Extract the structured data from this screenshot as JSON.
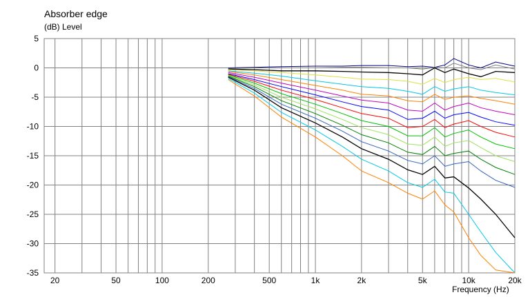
{
  "chart_data": {
    "type": "line",
    "title": "Absorber edge",
    "ylabel": "(dB)  Level",
    "xlabel": "Frequency  (Hz)",
    "x_scale": "log",
    "xlim": [
      17,
      20000
    ],
    "ylim": [
      -35,
      5
    ],
    "y_ticks": [
      5,
      0,
      -5,
      -10,
      -15,
      -20,
      -25,
      -30,
      -35
    ],
    "x_ticks": [
      {
        "value": 20,
        "label": "20"
      },
      {
        "value": 50,
        "label": "50"
      },
      {
        "value": 100,
        "label": "100"
      },
      {
        "value": 200,
        "label": "200"
      },
      {
        "value": 500,
        "label": "500"
      },
      {
        "value": 1000,
        "label": "1k"
      },
      {
        "value": 2000,
        "label": "2k"
      },
      {
        "value": 5000,
        "label": "5k"
      },
      {
        "value": 10000,
        "label": "10k"
      },
      {
        "value": 20000,
        "label": "20k"
      }
    ],
    "grid": true,
    "x": [
      270,
      400,
      600,
      1000,
      1500,
      2000,
      3000,
      4000,
      5000,
      6000,
      7000,
      8000,
      10000,
      12000,
      15000,
      20000
    ],
    "series": [
      {
        "color": "#000080",
        "values": [
          0.0,
          0.1,
          0.2,
          0.3,
          0.3,
          0.4,
          0.4,
          0.2,
          0.3,
          0.1,
          0.5,
          1.6,
          0.5,
          0.0,
          1.0,
          0.3
        ]
      },
      {
        "color": "#808080",
        "values": [
          -0.1,
          0.0,
          0.0,
          0.0,
          0.1,
          0.1,
          0.0,
          0.0,
          -0.2,
          0.1,
          0.0,
          0.8,
          0.0,
          -0.3,
          0.5,
          -0.2
        ]
      },
      {
        "color": "#000000",
        "values": [
          -0.2,
          -0.3,
          -0.5,
          -0.5,
          -0.6,
          -0.7,
          -0.8,
          -1.0,
          -1.2,
          0.0,
          -0.8,
          -0.2,
          -1.0,
          -1.5,
          -0.6,
          -0.8
        ]
      },
      {
        "color": "#e0e040",
        "values": [
          -0.3,
          -0.5,
          -0.8,
          -1.2,
          -1.6,
          -1.9,
          -2.0,
          -2.3,
          -2.8,
          -1.8,
          -2.5,
          -2.0,
          -1.6,
          -2.0,
          -1.8,
          -2.4
        ]
      },
      {
        "color": "#00c8e6",
        "values": [
          -0.5,
          -0.9,
          -1.4,
          -2.2,
          -2.8,
          -3.2,
          -3.5,
          -4.0,
          -4.5,
          -3.2,
          -4.0,
          -3.6,
          -3.2,
          -3.8,
          -4.2,
          -4.6
        ]
      },
      {
        "color": "#ff8000",
        "values": [
          -0.6,
          -1.2,
          -2.0,
          -3.0,
          -3.8,
          -4.5,
          -4.8,
          -5.6,
          -5.8,
          -4.5,
          -5.4,
          -5.0,
          -4.8,
          -5.2,
          -5.6,
          -6.2
        ]
      },
      {
        "color": "#c000c0",
        "values": [
          -0.8,
          -1.6,
          -2.6,
          -3.8,
          -4.8,
          -5.5,
          -6.0,
          -7.2,
          -7.4,
          -6.0,
          -7.2,
          -6.6,
          -6.0,
          -6.8,
          -7.4,
          -8.0
        ]
      },
      {
        "color": "#0000ff",
        "values": [
          -1.0,
          -2.0,
          -3.2,
          -4.6,
          -5.8,
          -6.6,
          -7.2,
          -8.8,
          -8.6,
          -7.4,
          -8.6,
          -8.0,
          -7.6,
          -8.4,
          -9.2,
          -9.8
        ]
      },
      {
        "color": "#ff0000",
        "values": [
          -1.1,
          -2.3,
          -3.8,
          -5.4,
          -6.8,
          -7.8,
          -8.6,
          -10.2,
          -10.0,
          -8.8,
          -10.2,
          -9.6,
          -9.0,
          -10.0,
          -11.0,
          -11.8
        ]
      },
      {
        "color": "#00c000",
        "values": [
          -1.2,
          -2.6,
          -4.4,
          -6.2,
          -7.8,
          -9.0,
          -10.0,
          -11.6,
          -11.6,
          -10.2,
          -11.8,
          -11.2,
          -10.6,
          -11.8,
          -13.0,
          -13.8
        ]
      },
      {
        "color": "#a0e060",
        "values": [
          -1.3,
          -2.9,
          -5.0,
          -7.0,
          -8.8,
          -10.2,
          -11.4,
          -13.0,
          -13.2,
          -11.8,
          -13.4,
          -12.8,
          -12.4,
          -13.6,
          -15.0,
          -16.0
        ]
      },
      {
        "color": "#008000",
        "values": [
          -1.4,
          -3.2,
          -5.6,
          -7.8,
          -9.8,
          -11.4,
          -12.8,
          -14.4,
          -14.8,
          -13.4,
          -15.0,
          -14.6,
          -14.2,
          -15.6,
          -17.0,
          -18.2
        ]
      },
      {
        "color": "#3060c0",
        "values": [
          -1.5,
          -3.5,
          -6.2,
          -8.6,
          -10.8,
          -12.6,
          -14.2,
          -15.8,
          -16.4,
          -15.0,
          -16.8,
          -16.4,
          -16.0,
          -17.6,
          -19.2,
          -20.4
        ]
      },
      {
        "color": "#000000",
        "values": [
          -1.6,
          -3.8,
          -6.8,
          -9.4,
          -11.8,
          -13.8,
          -15.6,
          -17.4,
          -18.2,
          -16.8,
          -18.8,
          -18.6,
          -20.5,
          -22.4,
          -25.0,
          -29.0
        ]
      },
      {
        "color": "#00c8e6",
        "values": [
          -1.8,
          -4.3,
          -7.6,
          -10.6,
          -13.4,
          -15.6,
          -17.6,
          -19.6,
          -20.4,
          -19.0,
          -21.2,
          -21.4,
          -25.0,
          -28.0,
          -31.5,
          -35.0
        ]
      },
      {
        "color": "#ff8000",
        "values": [
          -2.0,
          -4.8,
          -8.4,
          -11.8,
          -15.0,
          -17.6,
          -19.6,
          -21.4,
          -22.4,
          -21.0,
          -23.4,
          -24.6,
          -29.0,
          -32.0,
          -34.5,
          -35.0
        ]
      }
    ]
  }
}
